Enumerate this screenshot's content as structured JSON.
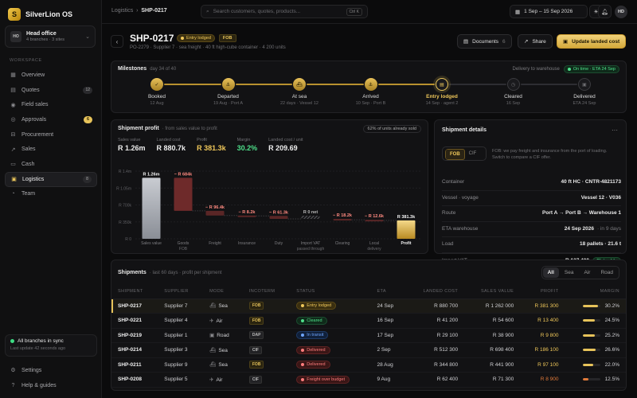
{
  "brand": {
    "name": "SilverLion OS",
    "logo_letter": "S"
  },
  "org": {
    "avatar": "HO",
    "name": "Head office",
    "sub": "4 branches · 3 sites"
  },
  "sidebar": {
    "section_label": "WORKSPACE",
    "items": [
      {
        "label": "Overview",
        "icon": "overview-icon",
        "glyph": "▦",
        "badge": ""
      },
      {
        "label": "Quotes",
        "icon": "quotes-icon",
        "glyph": "▤",
        "badge": "12"
      },
      {
        "label": "Field sales",
        "icon": "pin-icon",
        "glyph": "◉",
        "badge": ""
      },
      {
        "label": "Approvals",
        "icon": "check-icon",
        "glyph": "◎",
        "badge": "6"
      },
      {
        "label": "Procurement",
        "icon": "cart-icon",
        "glyph": "⊟",
        "badge": ""
      },
      {
        "label": "Sales",
        "icon": "trend-icon",
        "glyph": "↗",
        "badge": ""
      },
      {
        "label": "Cash",
        "icon": "wallet-icon",
        "glyph": "▭",
        "badge": ""
      },
      {
        "label": "Logistics",
        "icon": "truck-icon",
        "glyph": "▣",
        "badge": "8"
      },
      {
        "label": "Team",
        "icon": "team-icon",
        "glyph": "◔",
        "badge": ""
      }
    ],
    "sync": {
      "title": "All branches in sync",
      "sub": "Last update 42 seconds ago"
    },
    "footer": [
      {
        "label": "Settings",
        "icon": "gear-icon",
        "glyph": "⚙"
      },
      {
        "label": "Help & guides",
        "icon": "help-icon",
        "glyph": "?"
      }
    ]
  },
  "topbar": {
    "crumb_parent": "Logistics",
    "crumb_sep": "›",
    "crumb_current": "SHP-0217",
    "search_placeholder": "Search customers, quotes, products...",
    "search_kbd": "Ctrl K",
    "date_range": "1 Sep – 15 Sep 2026",
    "user_initials": "HD"
  },
  "header": {
    "id": "SHP-0217",
    "status": "Entry lodged",
    "incoterm": "FOB",
    "subline": "PO-2279 · Supplier 7 · sea freight · 40 ft high-cube container · 4 200 units",
    "documents_label": "Documents",
    "documents_count": "6",
    "share_label": "Share",
    "update_label": "Update landed cost"
  },
  "milestones": {
    "title": "Milestones",
    "sub": "day 34 of 40",
    "delivery_label": "Delivery to warehouse",
    "delivery_status": "On time · ETA 24 Sep",
    "steps": [
      {
        "label": "Booked",
        "date": "12 Aug",
        "state": "done",
        "icon": "check-icon",
        "glyph": "✓"
      },
      {
        "label": "Departed",
        "date": "19 Aug · Port A",
        "state": "done",
        "icon": "anchor-icon",
        "glyph": "⚓"
      },
      {
        "label": "At sea",
        "date": "22 days · Vessel 12",
        "state": "done",
        "icon": "ship-icon",
        "glyph": "⛴"
      },
      {
        "label": "Arrived",
        "date": "10 Sep · Port B",
        "state": "done",
        "icon": "anchor-icon",
        "glyph": "⚓"
      },
      {
        "label": "Entry lodged",
        "date": "14 Sep · agent 2",
        "state": "current",
        "icon": "document-icon",
        "glyph": "▤"
      },
      {
        "label": "Cleared",
        "date": "16 Sep",
        "state": "todo",
        "icon": "clock-icon",
        "glyph": "◷"
      },
      {
        "label": "Delivered",
        "date": "ETA 24 Sep",
        "state": "todo",
        "icon": "truck-icon",
        "glyph": "▣"
      }
    ]
  },
  "profit": {
    "title": "Shipment profit",
    "sub": "· from sales value to profit",
    "sold_pill": "62% of units already sold",
    "kpis": [
      {
        "label": "Sales value",
        "value": "R 1.26m",
        "tone": ""
      },
      {
        "label": "Landed cost",
        "value": "R 880.7k",
        "tone": ""
      },
      {
        "label": "Profit",
        "value": "R 381.3k",
        "tone": "gold"
      },
      {
        "label": "Margin",
        "value": "30.2%",
        "tone": "green"
      },
      {
        "label": "Landed cost / unit",
        "value": "R 209.69",
        "tone": ""
      }
    ]
  },
  "chart_data": {
    "type": "waterfall",
    "y_ticks": [
      "R 1.4m",
      "R 1.05m",
      "R 700k",
      "R 350k",
      "R 0"
    ],
    "ylim": [
      0,
      1400
    ],
    "unit": "R thousand",
    "steps": [
      {
        "label": "Sales value",
        "label2": "",
        "kind": "total",
        "value": 1262,
        "text": "R 1.26m"
      },
      {
        "label": "Goods",
        "label2": "FOB",
        "kind": "neg",
        "value": 684,
        "text": "− R 684k"
      },
      {
        "label": "Freight",
        "label2": "",
        "kind": "neg",
        "value": 96.4,
        "text": "− R 96.4k"
      },
      {
        "label": "Insurance",
        "label2": "",
        "kind": "neg",
        "value": 8.2,
        "text": "− R 8.2k"
      },
      {
        "label": "Duty",
        "label2": "",
        "kind": "neg",
        "value": 61.3,
        "text": "− R 61.3k"
      },
      {
        "label": "Import VAT",
        "label2": "passed through",
        "kind": "zero",
        "value": 0,
        "text": "R 0 net"
      },
      {
        "label": "Clearing",
        "label2": "",
        "kind": "neg",
        "value": 18.2,
        "text": "− R 18.2k"
      },
      {
        "label": "Local",
        "label2": "delivery",
        "kind": "neg",
        "value": 12.6,
        "text": "− R 12.6k"
      },
      {
        "label": "Profit",
        "label2": "",
        "kind": "profit",
        "value": 381.3,
        "text": "R 381.3k"
      }
    ]
  },
  "details": {
    "title": "Shipment details",
    "more": "···",
    "seg": [
      "FOB",
      "CIF"
    ],
    "note": "FOB: we pay freight and insurance from the port of loading. Switch to compare a CIF offer.",
    "rows": [
      {
        "k": "Container",
        "v": "40 ft HC · CNTR-4821173",
        "extra": ""
      },
      {
        "k": "Vessel · voyage",
        "v": "Vessel 12 · V036",
        "extra": ""
      },
      {
        "k": "Route",
        "v": "Port A → Port B → Warehouse 1",
        "extra": ""
      },
      {
        "k": "ETA warehouse",
        "v": "24 Sep 2026",
        "extra": "· in 9 days"
      },
      {
        "k": "Load",
        "v": "18 pallets · 21.6 t",
        "extra": ""
      },
      {
        "k": "Import VAT",
        "v": "R 137 400",
        "extra": "Claimable"
      }
    ]
  },
  "shipments": {
    "title": "Shipments",
    "sub": "· last 60 days · profit per shipment",
    "tabs": [
      "All",
      "Sea",
      "Air",
      "Road"
    ],
    "columns": [
      "SHIPMENT",
      "SUPPLIER",
      "MODE",
      "INCOTERM",
      "STATUS",
      "ETA",
      "LANDED COST",
      "SALES VALUE",
      "PROFIT",
      "MARGIN"
    ],
    "rows": [
      {
        "id": "SHP-0217",
        "supplier": "Supplier 7",
        "mode": "Sea",
        "mode_glyph": "⛴",
        "inco": "FOB",
        "status": "Entry lodged",
        "tone": "gold",
        "eta": "24 Sep",
        "landed": "R 880 700",
        "sales": "R 1 262 000",
        "profit": "R 381 300",
        "margin": "30.2%",
        "margin_val": 30.2,
        "sel": true
      },
      {
        "id": "SHP-0221",
        "supplier": "Supplier 4",
        "mode": "Air",
        "mode_glyph": "✈",
        "inco": "FOB",
        "status": "Cleared",
        "tone": "green",
        "eta": "16 Sep",
        "landed": "R 41 200",
        "sales": "R 54 600",
        "profit": "R 13 400",
        "margin": "24.5%",
        "margin_val": 24.5,
        "sel": false
      },
      {
        "id": "SHP-0219",
        "supplier": "Supplier 1",
        "mode": "Road",
        "mode_glyph": "▣",
        "inco": "DAP",
        "status": "In transit",
        "tone": "blue",
        "eta": "17 Sep",
        "landed": "R 29 100",
        "sales": "R 38 900",
        "profit": "R 9 800",
        "margin": "25.2%",
        "margin_val": 25.2,
        "sel": false
      },
      {
        "id": "SHP-0214",
        "supplier": "Supplier 3",
        "mode": "Sea",
        "mode_glyph": "⛴",
        "inco": "CIF",
        "status": "Delivered",
        "tone": "red",
        "eta": "2 Sep",
        "landed": "R 512 300",
        "sales": "R 698 400",
        "profit": "R 186 100",
        "margin": "26.6%",
        "margin_val": 26.6,
        "sel": false
      },
      {
        "id": "SHP-0211",
        "supplier": "Supplier 9",
        "mode": "Sea",
        "mode_glyph": "⛴",
        "inco": "FOB",
        "status": "Delivered",
        "tone": "red",
        "eta": "28 Aug",
        "landed": "R 344 800",
        "sales": "R 441 900",
        "profit": "R 97 100",
        "margin": "22.0%",
        "margin_val": 22.0,
        "sel": false
      },
      {
        "id": "SHP-0208",
        "supplier": "Supplier 5",
        "mode": "Air",
        "mode_glyph": "✈",
        "inco": "CIF",
        "status": "Freight over budget",
        "tone": "red",
        "eta": "9 Aug",
        "landed": "R 62 400",
        "sales": "R 71 300",
        "profit": "R 8 900",
        "margin": "12.5%",
        "margin_val": 12.5,
        "sel": false
      }
    ]
  },
  "colors": {
    "accent": "#e7c35a",
    "green": "#4ee08a",
    "bg": "#0b0b0c"
  }
}
